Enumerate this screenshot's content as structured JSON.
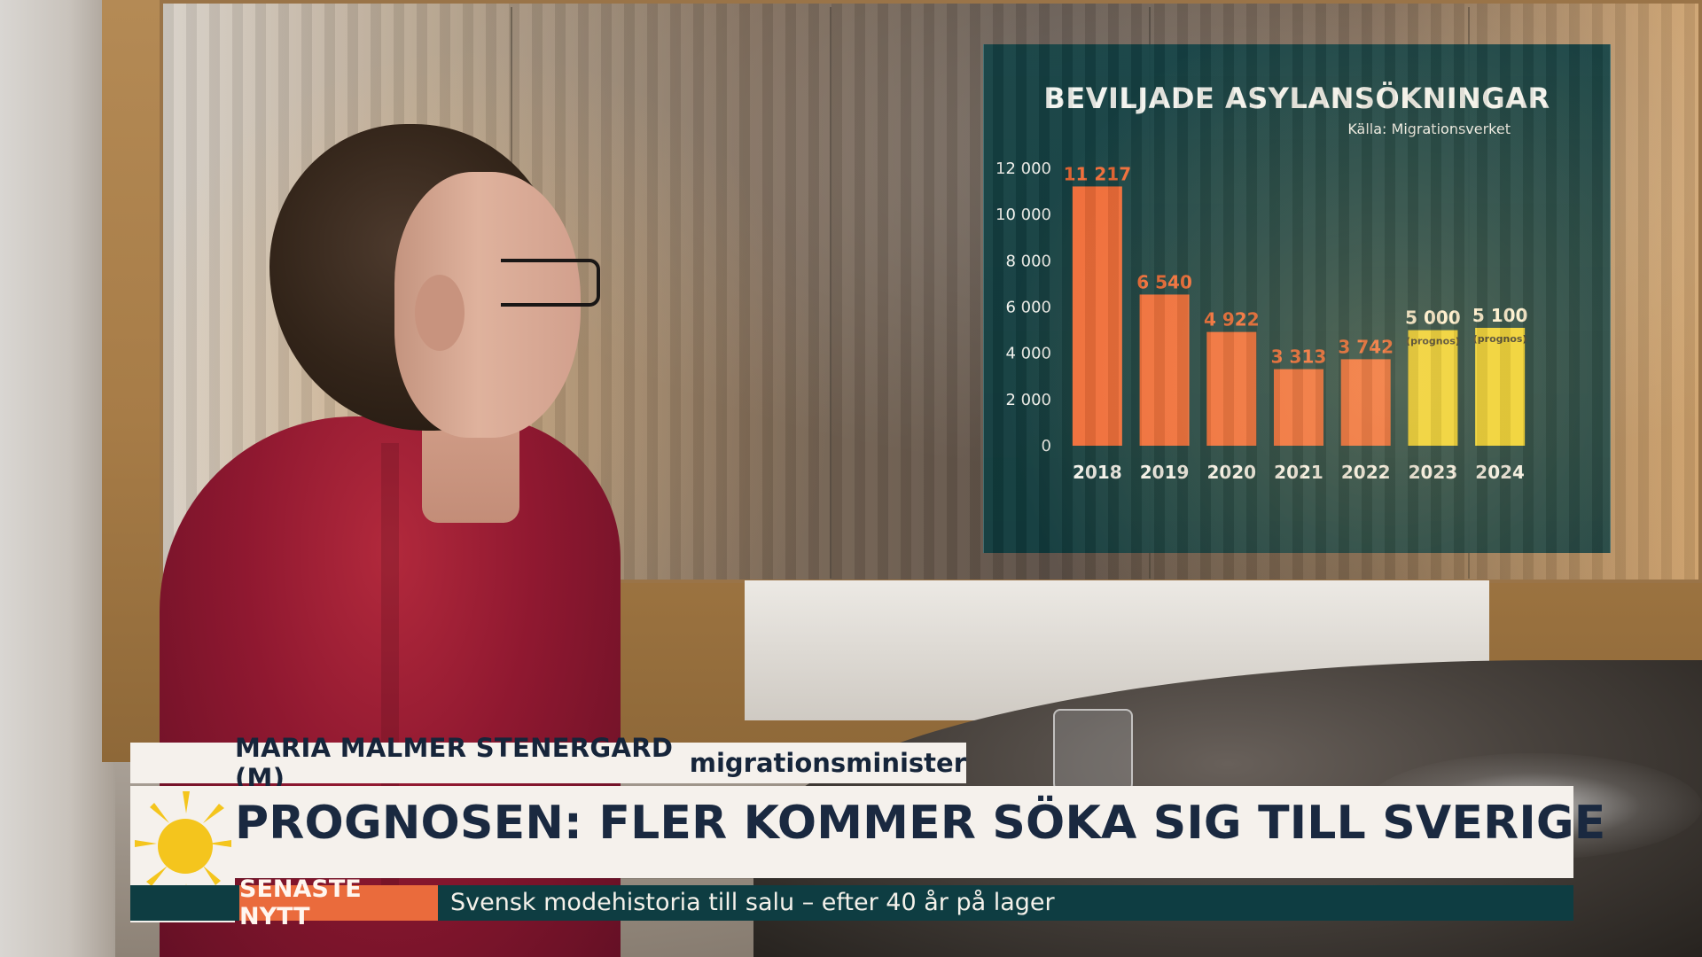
{
  "chart_data": {
    "type": "bar",
    "title": "BEVILJADE ASYLANSÖKNINGAR",
    "source": "Källa: Migrationsverket",
    "categories": [
      "2018",
      "2019",
      "2020",
      "2021",
      "2022",
      "2023",
      "2024"
    ],
    "values": [
      11217,
      6540,
      4922,
      3313,
      3742,
      5000,
      5100
    ],
    "data_labels": [
      "11 217",
      "6 540",
      "4 922",
      "3 313",
      "3 742",
      "5 000",
      "5 100"
    ],
    "forecast_labels": [
      "",
      "",
      "",
      "",
      "",
      "(prognos)",
      "(prognos)"
    ],
    "y_ticks": [
      0,
      2000,
      4000,
      6000,
      8000,
      10000,
      12000
    ],
    "y_tick_labels": [
      "0",
      "2 000",
      "4 000",
      "6 000",
      "8 000",
      "10 000",
      "12 000"
    ],
    "ylim": [
      0,
      12000
    ],
    "xlabel": "",
    "ylabel": "",
    "grid": false,
    "colors": {
      "actual": "#ef6a36",
      "forecast": "#efd62d",
      "panel": "#0f3f42",
      "text": "#f2f2ed"
    }
  },
  "overlay": {
    "person_name": "MARIA MALMER STENERGARD (M)",
    "person_role": "migrationsminister",
    "headline": "PROGNOSEN: FLER KOMMER SÖKA SIG TILL SVERIGE",
    "breaking_label": "SENASTE NYTT",
    "ticker_text": "Svensk modehistoria till salu – efter 40 år på lager",
    "sun_icon": "sun-icon"
  }
}
